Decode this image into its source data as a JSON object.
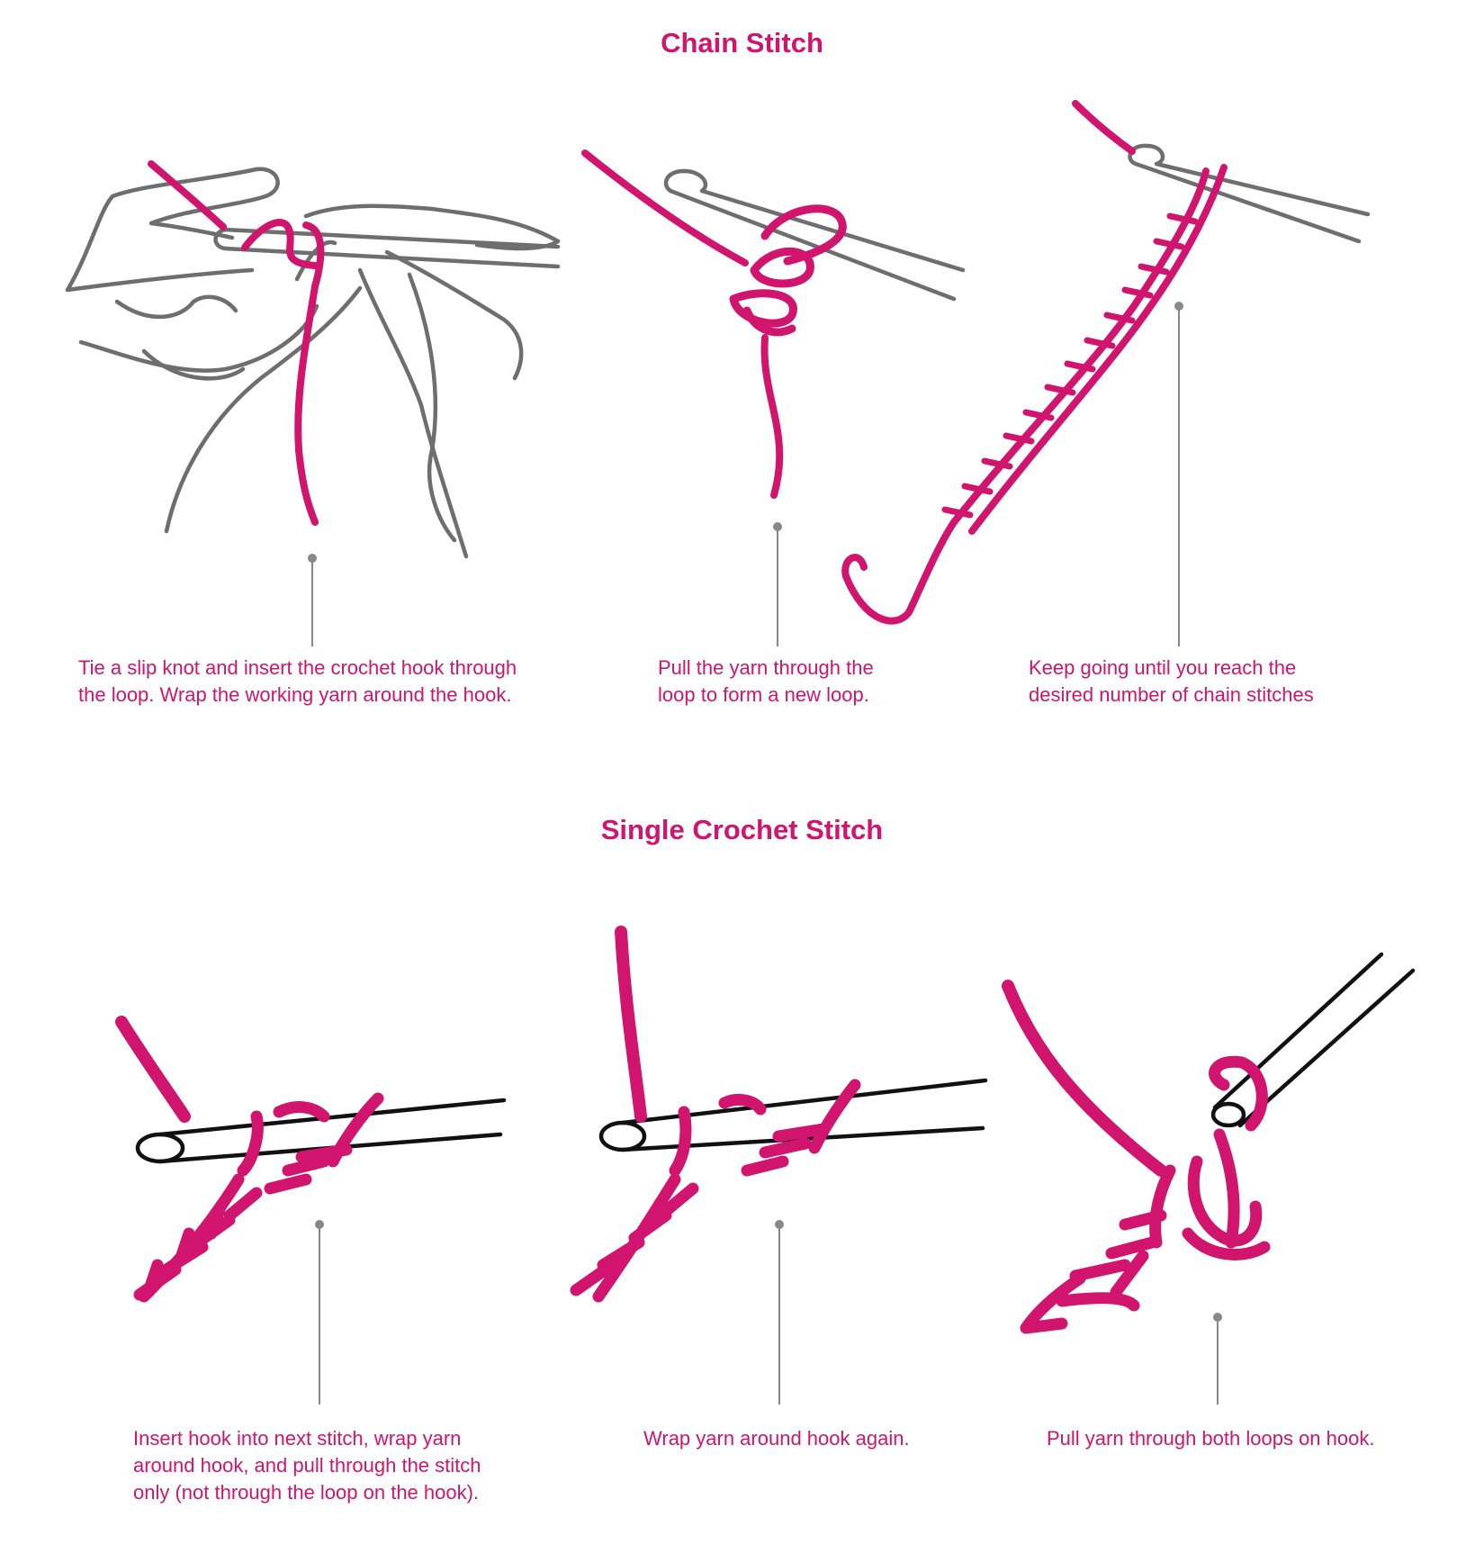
{
  "sections": [
    {
      "title": "Chain Stitch",
      "steps": [
        {
          "caption": "Tie a slip knot and insert the crochet hook through\nthe loop. Wrap the working yarn around the hook."
        },
        {
          "caption": "Pull the yarn through the\nloop to form a new loop."
        },
        {
          "caption": "Keep going until you reach the\ndesired number of chain stitches"
        }
      ]
    },
    {
      "title": "Single Crochet Stitch",
      "steps": [
        {
          "caption": "Insert hook into next stitch, wrap yarn\naround hook, and pull through the stitch\nonly (not through the loop on the hook)."
        },
        {
          "caption": "Wrap yarn around hook again."
        },
        {
          "caption": "Pull yarn through both loops on hook."
        }
      ]
    }
  ],
  "colors": {
    "accent": "#d1156e",
    "line": "#6e6e6e",
    "ink": "#111111",
    "leader": "#888888"
  },
  "icons": [
    "hands-hook-yarn-illustration",
    "hook-loop-illustration",
    "chain-illustration",
    "single-crochet-illustration"
  ]
}
